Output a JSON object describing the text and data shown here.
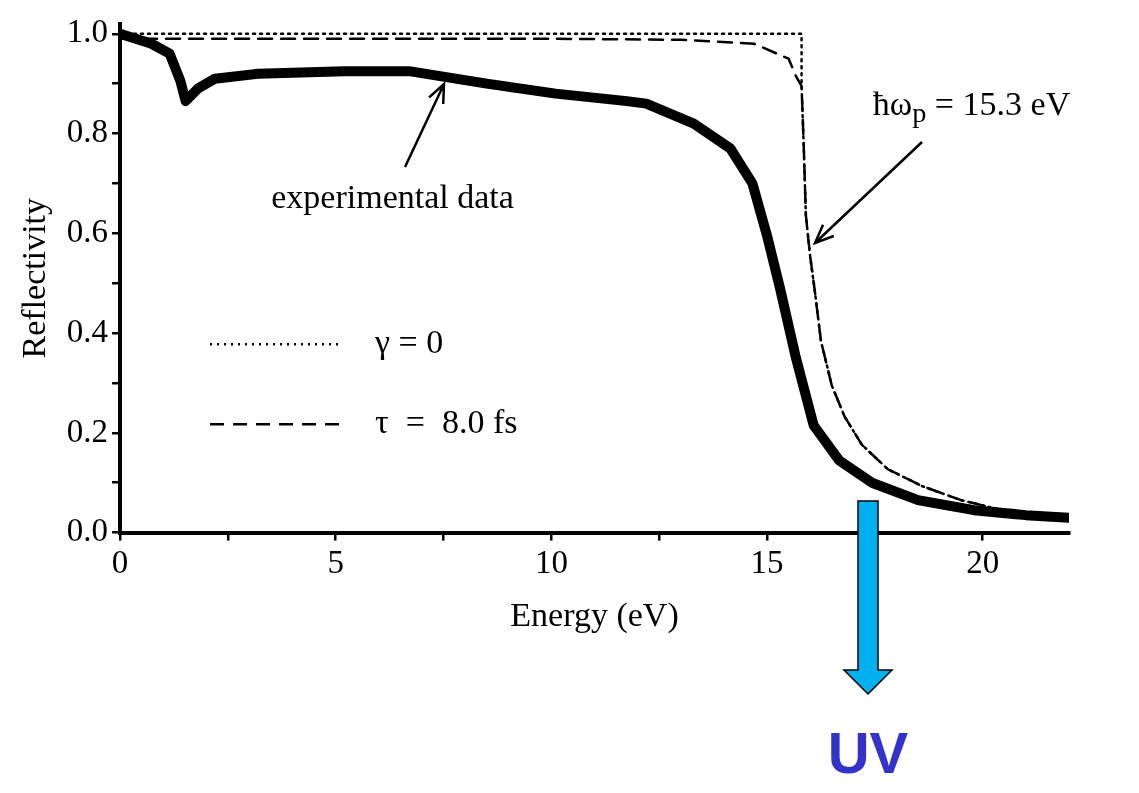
{
  "chart_data": {
    "type": "line",
    "xlabel": "Energy (eV)",
    "ylabel": "Reflectivity",
    "xlim": [
      0,
      22
    ],
    "ylim": [
      0,
      1.02
    ],
    "xticks": [
      0,
      {
        "value": 2.5,
        "label": null
      },
      5,
      {
        "value": 7.5,
        "label": null
      },
      10,
      {
        "value": 12.5,
        "label": null
      },
      15,
      {
        "value": 17.5,
        "label": null
      },
      20
    ],
    "yticks": [
      {
        "value": 0,
        "label": "0.0"
      },
      {
        "value": 0.1,
        "label": null
      },
      {
        "value": 0.2,
        "label": "0.2"
      },
      {
        "value": 0.3,
        "label": null
      },
      {
        "value": 0.4,
        "label": "0.4"
      },
      {
        "value": 0.5,
        "label": null
      },
      {
        "value": 0.6,
        "label": "0.6"
      },
      {
        "value": 0.7,
        "label": null
      },
      {
        "value": 0.8,
        "label": "0.8"
      },
      {
        "value": 0.9,
        "label": null
      },
      {
        "value": 1.0,
        "label": "1.0"
      }
    ],
    "grid": false,
    "legend": "left",
    "marker": "none",
    "series": [
      {
        "name": "γ = 0",
        "color": "#000000",
        "line_style": "dotted",
        "x": [
          0,
          15.8,
          15.8,
          15.85,
          15.9,
          16.0,
          16.1,
          16.25,
          16.5,
          16.8,
          17.2,
          17.8,
          18.6,
          19.5,
          20.5,
          21.4,
          22
        ],
        "values": [
          1.0,
          1.0,
          0.895,
          0.776,
          0.636,
          0.553,
          0.489,
          0.384,
          0.295,
          0.232,
          0.176,
          0.127,
          0.093,
          0.065,
          0.044,
          0.032,
          0.026
        ]
      },
      {
        "name": "τ  =  8.0 fs",
        "color": "#000000",
        "line_style": "dashed",
        "x": [
          0,
          5,
          10,
          13,
          14.7,
          15.5,
          15.67,
          15.8,
          15.85,
          15.9,
          16.0,
          16.1,
          16.25,
          16.5,
          16.8,
          17.2,
          17.8,
          18.6,
          19.5,
          20.5,
          21.4,
          22
        ],
        "values": [
          0.99,
          0.99,
          0.99,
          0.988,
          0.98,
          0.95,
          0.915,
          0.895,
          0.776,
          0.636,
          0.553,
          0.489,
          0.384,
          0.295,
          0.232,
          0.176,
          0.127,
          0.093,
          0.065,
          0.044,
          0.032,
          0.026
        ]
      },
      {
        "color": "#000000",
        "line_style": "solid",
        "x": [
          0,
          0.73,
          1.15,
          1.4,
          1.52,
          1.8,
          2.2,
          3.2,
          5.2,
          6.7,
          8.5,
          10.1,
          11.75,
          12.2,
          13.3,
          14.15,
          14.66,
          15.0,
          15.3,
          15.67,
          16.08,
          16.67,
          17.43,
          18.5,
          19.8,
          21,
          22
        ],
        "values": [
          1.0,
          0.98,
          0.96,
          0.905,
          0.865,
          0.89,
          0.91,
          0.92,
          0.925,
          0.925,
          0.9,
          0.88,
          0.865,
          0.86,
          0.82,
          0.77,
          0.7,
          0.595,
          0.49,
          0.35,
          0.215,
          0.145,
          0.1,
          0.065,
          0.045,
          0.035,
          0.03
        ]
      }
    ],
    "annotations": [
      {
        "text": "experimental data",
        "x": 7.5,
        "y": 0.9
      },
      {
        "text": "ħω$_{p}$ = 15.3 eV",
        "x": 16.1,
        "y": 0.58
      },
      "UV"
    ]
  }
}
